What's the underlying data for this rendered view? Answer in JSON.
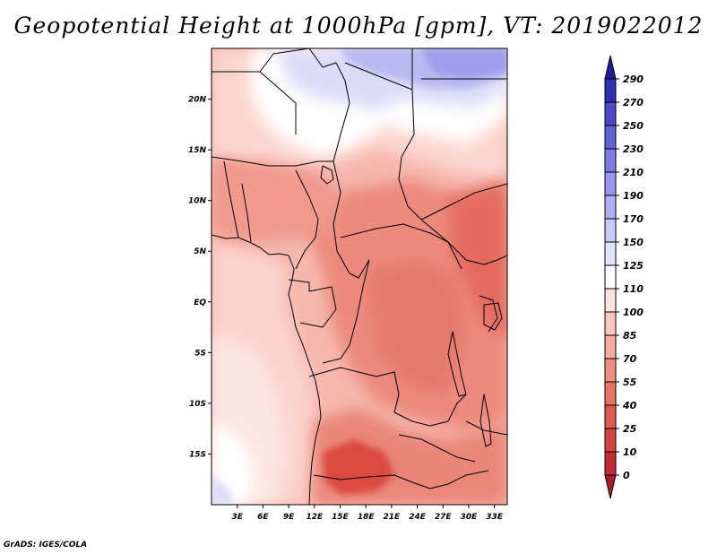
{
  "title": "Geopotential Height at 1000hPa [gpm], VT: 2019022012",
  "footer": "GrADS: IGES/COLA",
  "map": {
    "lon_range": [
      0,
      34.5
    ],
    "lat_range": [
      -20,
      25
    ],
    "x_ticks": [
      "3E",
      "6E",
      "9E",
      "12E",
      "15E",
      "18E",
      "21E",
      "24E",
      "27E",
      "30E",
      "33E"
    ],
    "x_tick_values": [
      3,
      6,
      9,
      12,
      15,
      18,
      21,
      24,
      27,
      30,
      33
    ],
    "y_ticks": [
      "20N",
      "15N",
      "10N",
      "5N",
      "EQ",
      "5S",
      "10S",
      "15S"
    ],
    "y_tick_values": [
      20,
      15,
      10,
      5,
      0,
      -5,
      -10,
      -15
    ]
  },
  "colorbar": {
    "labels": [
      "0",
      "10",
      "25",
      "40",
      "55",
      "70",
      "85",
      "100",
      "110",
      "125",
      "150",
      "170",
      "190",
      "210",
      "230",
      "250",
      "270",
      "290"
    ],
    "colors": [
      "#b2182b",
      "#c62a33",
      "#d6423f",
      "#e05a50",
      "#e77464",
      "#ee8f80",
      "#f4aba0",
      "#f9c6bf",
      "#fde2df",
      "#ffffff",
      "#e3e3ff",
      "#c9c9fb",
      "#aeaef5",
      "#9595ee",
      "#7b7be5",
      "#6161d8",
      "#4848c9",
      "#3131b6",
      "#1f1f9c"
    ]
  },
  "colors": {
    "ocean": "#f9c6bf",
    "land_base": "#f0a196",
    "border": "#000000"
  }
}
